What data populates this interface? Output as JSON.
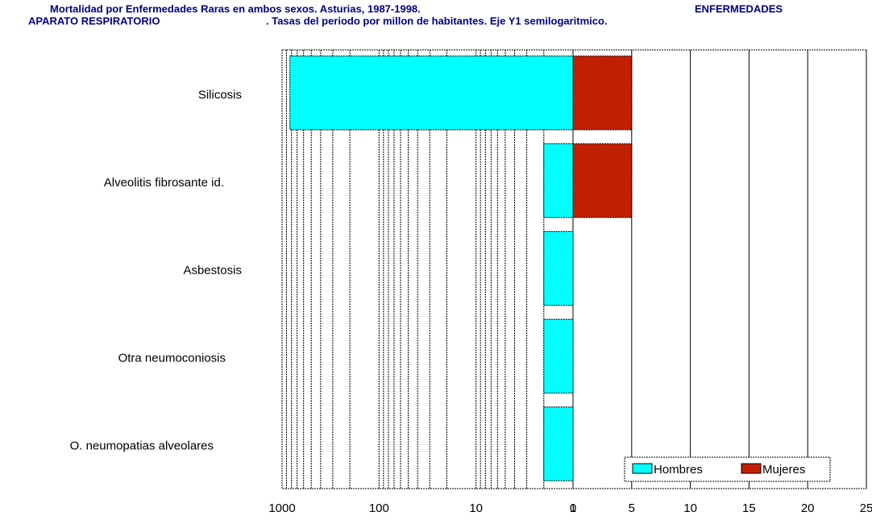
{
  "chart_data": {
    "type": "bar",
    "title": [
      "Mortalidad por Enfermedades Raras en ambos sexos. Asturias, 1987-1998.",
      "ENFERMEDADES",
      "APARATO RESPIRATORIO",
      ". Tasas del periodo por millon de habitantes. Eje Y1 semilogaritmico."
    ],
    "categories": [
      "Silicosis",
      "Alveolitis fibrosante id.",
      "Asbestosis",
      "Otra neumoconiosis",
      "O. neumopatias alveolares"
    ],
    "series": [
      {
        "name": "Hombres",
        "color": "#00ffff",
        "axis": "x_left",
        "values": [
          830,
          2,
          2,
          2,
          2
        ]
      },
      {
        "name": "Mujeres",
        "color": "#c02000",
        "axis": "x_right",
        "values": [
          5,
          5,
          0,
          0,
          0
        ]
      }
    ],
    "x_left_lim": [
      1,
      1000
    ],
    "x_left_ticks": [
      1000,
      100,
      10,
      1
    ],
    "x_left_log": true,
    "xlim": [
      0,
      25
    ],
    "xticks": [
      0,
      5,
      10,
      15,
      20,
      25
    ],
    "grid": true,
    "legend": "lower right"
  }
}
